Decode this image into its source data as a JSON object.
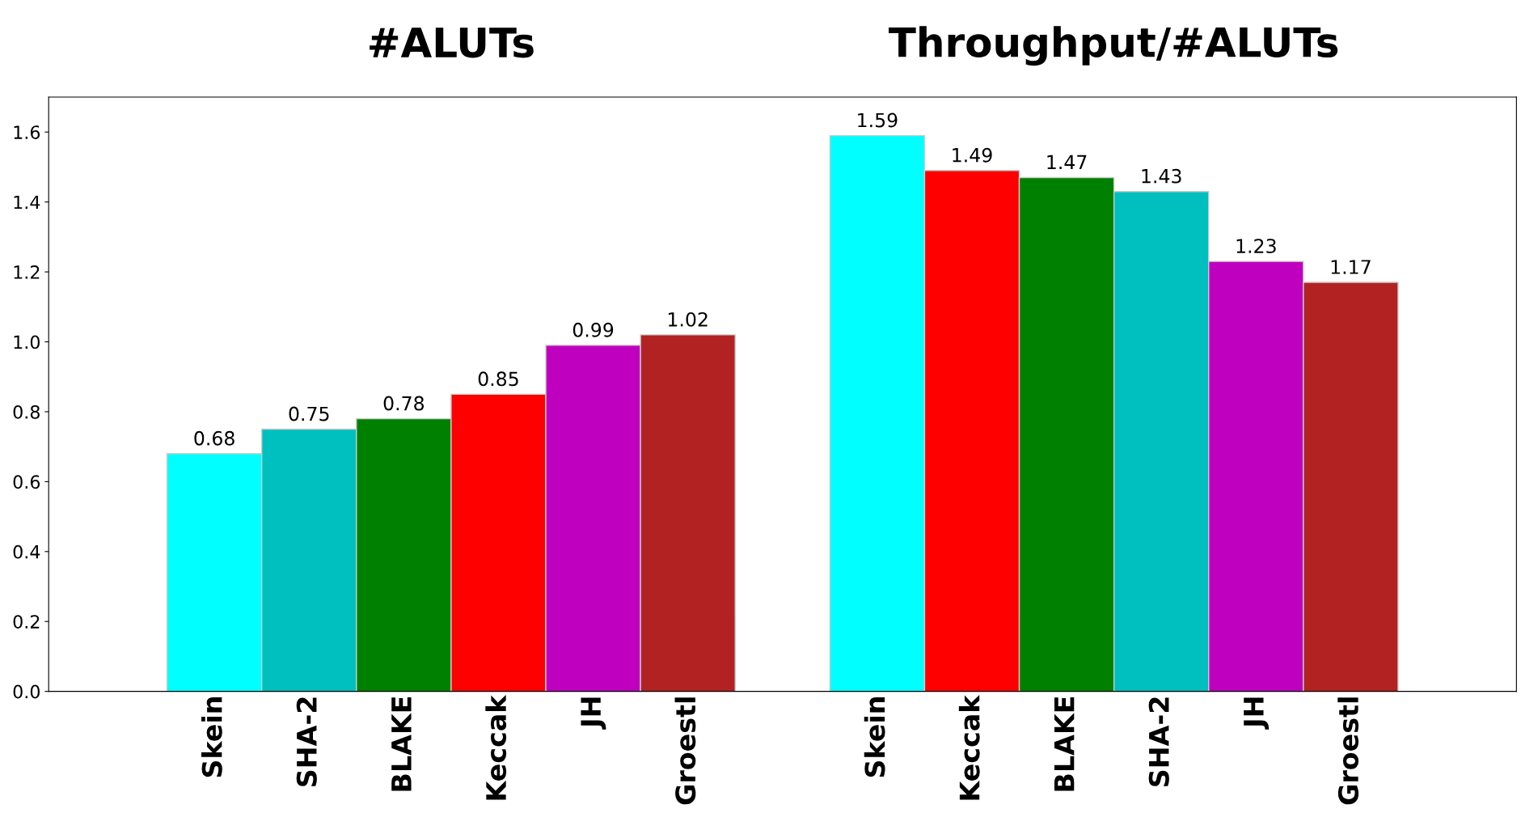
{
  "chart_data": {
    "type": "bar",
    "categories": [
      "Skein",
      "SHA-2",
      "BLAKE",
      "Keccak",
      "JH",
      "Groestl",
      null,
      "Skein",
      "Keccak",
      "BLAKE",
      "SHA-2",
      "JH",
      "Groestl"
    ],
    "values": [
      0.68,
      0.75,
      0.78,
      0.85,
      0.99,
      1.02,
      null,
      1.59,
      1.49,
      1.47,
      1.43,
      1.23,
      1.17
    ],
    "colors": [
      "#00ffff",
      "#00bfbf",
      "#008000",
      "#ff0000",
      "#bf00bf",
      "#b22222",
      "#ffffff",
      "#00ffff",
      "#ff0000",
      "#008000",
      "#00bfbf",
      "#bf00bf",
      "#b22222"
    ],
    "data_labels": true,
    "ylim": [
      0,
      1.7
    ],
    "yticks": [
      {
        "value": 0,
        "label": "0.0"
      },
      0.2,
      0.4,
      0.6,
      0.8,
      {
        "value": 1,
        "label": "1.0"
      },
      1.2,
      1.4,
      1.6
    ],
    "grid": false,
    "annotations": [
      "#ALUTs",
      "Throughput/#ALUTs"
    ]
  }
}
